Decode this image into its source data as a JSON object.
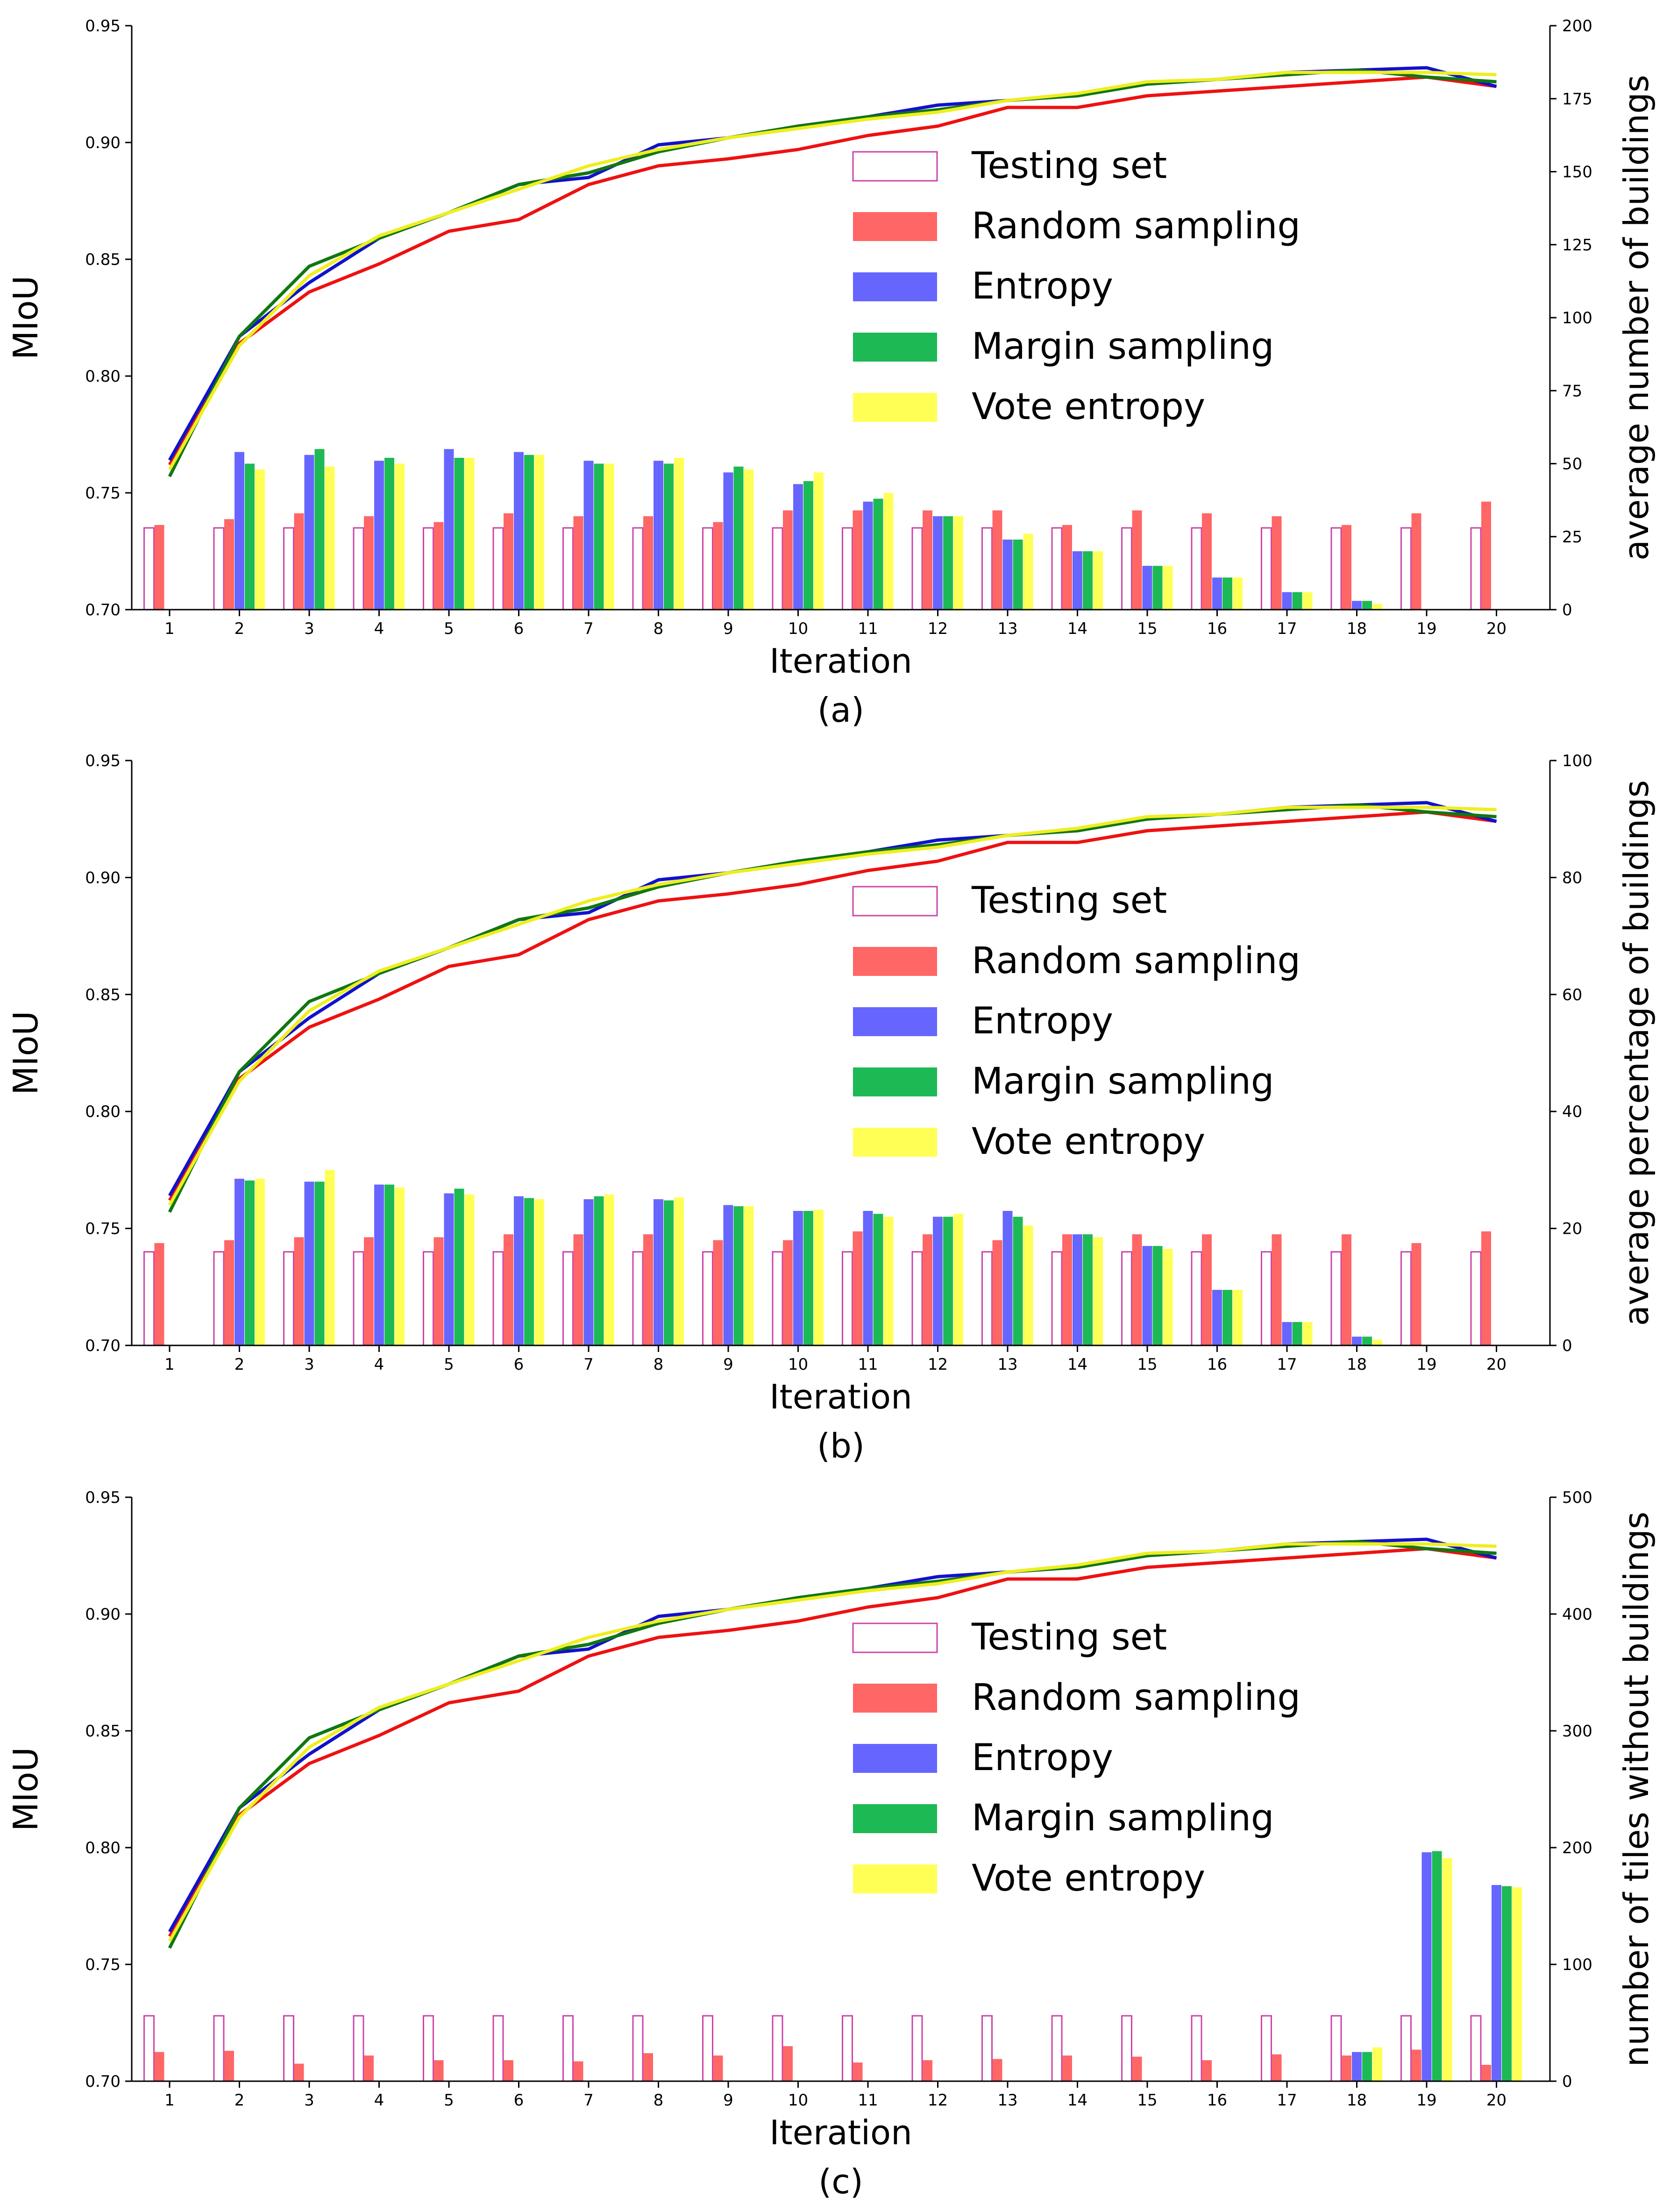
{
  "colors": {
    "testing": "#cc44aa",
    "random": "#ff6666",
    "entropy": "#6666ff",
    "margin": "#1db954",
    "vote": "#ffff55",
    "line_random": "#ee1111",
    "line_entropy": "#1111cc",
    "line_margin": "#117711",
    "line_vote": "#eeee22"
  },
  "chart_data": [
    {
      "type": "bar+line",
      "panel_label": "(a)",
      "xlabel": "Iteration",
      "ylabel": "MIoU",
      "ylabel_right": "average number of buildings",
      "categories": [
        "1",
        "2",
        "3",
        "4",
        "5",
        "6",
        "7",
        "8",
        "9",
        "10",
        "11",
        "12",
        "13",
        "14",
        "15",
        "16",
        "17",
        "18",
        "19",
        "20"
      ],
      "ylim": [
        0.7,
        0.95
      ],
      "yticks": [
        "0.70",
        "0.75",
        "0.80",
        "0.85",
        "0.90",
        "0.95"
      ],
      "ylim_right": [
        0,
        200
      ],
      "yticks_right": [
        "0",
        "25",
        "50",
        "75",
        "100",
        "125",
        "150",
        "175",
        "200"
      ],
      "legend": [
        "Testing set",
        "Random sampling",
        "Entropy",
        "Margin sampling",
        "Vote entropy"
      ],
      "lines": [
        {
          "name": "Random sampling",
          "key": "line_random",
          "values": [
            0.762,
            0.814,
            0.836,
            0.848,
            0.862,
            0.867,
            0.882,
            0.89,
            0.893,
            0.897,
            0.903,
            0.907,
            0.915,
            0.915,
            0.92,
            0.922,
            0.924,
            0.926,
            0.928,
            0.924
          ]
        },
        {
          "name": "Entropy",
          "key": "line_entropy",
          "values": [
            0.764,
            0.817,
            0.84,
            0.859,
            0.87,
            0.882,
            0.885,
            0.899,
            0.902,
            0.907,
            0.911,
            0.916,
            0.918,
            0.92,
            0.925,
            0.927,
            0.93,
            0.931,
            0.932,
            0.924
          ]
        },
        {
          "name": "Margin sampling",
          "key": "line_margin",
          "values": [
            0.757,
            0.817,
            0.847,
            0.859,
            0.87,
            0.882,
            0.887,
            0.896,
            0.902,
            0.907,
            0.911,
            0.914,
            0.918,
            0.92,
            0.925,
            0.927,
            0.929,
            0.931,
            0.928,
            0.926
          ]
        },
        {
          "name": "Vote entropy",
          "key": "line_vote",
          "values": [
            0.76,
            0.813,
            0.843,
            0.86,
            0.87,
            0.88,
            0.89,
            0.897,
            0.902,
            0.906,
            0.91,
            0.913,
            0.918,
            0.921,
            0.926,
            0.927,
            0.93,
            0.93,
            0.93,
            0.929
          ]
        }
      ],
      "bars": [
        {
          "name": "Testing set",
          "key": "testing",
          "values": [
            28,
            28,
            28,
            28,
            28,
            28,
            28,
            28,
            28,
            28,
            28,
            28,
            28,
            28,
            28,
            28,
            28,
            28,
            28,
            28
          ]
        },
        {
          "name": "Random sampling",
          "key": "random",
          "values": [
            29,
            31,
            33,
            32,
            30,
            33,
            32,
            32,
            30,
            34,
            34,
            34,
            34,
            29,
            34,
            33,
            32,
            29,
            33,
            37
          ]
        },
        {
          "name": "Entropy",
          "key": "entropy",
          "values": [
            null,
            54,
            53,
            51,
            55,
            54,
            51,
            51,
            47,
            43,
            37,
            32,
            24,
            20,
            15,
            11,
            6,
            3,
            null,
            null
          ]
        },
        {
          "name": "Margin sampling",
          "key": "margin",
          "values": [
            null,
            50,
            55,
            52,
            52,
            53,
            50,
            50,
            49,
            44,
            38,
            32,
            24,
            20,
            15,
            11,
            6,
            3,
            null,
            null
          ]
        },
        {
          "name": "Vote entropy",
          "key": "vote",
          "values": [
            null,
            48,
            49,
            50,
            52,
            53,
            50,
            52,
            48,
            47,
            40,
            32,
            26,
            20,
            15,
            11,
            6,
            2,
            null,
            null
          ]
        }
      ]
    },
    {
      "type": "bar+line",
      "panel_label": "(b)",
      "xlabel": "Iteration",
      "ylabel": "MIoU",
      "ylabel_right": "average percentage of buildings",
      "categories": [
        "1",
        "2",
        "3",
        "4",
        "5",
        "6",
        "7",
        "8",
        "9",
        "10",
        "11",
        "12",
        "13",
        "14",
        "15",
        "16",
        "17",
        "18",
        "19",
        "20"
      ],
      "ylim": [
        0.7,
        0.95
      ],
      "yticks": [
        "0.70",
        "0.75",
        "0.80",
        "0.85",
        "0.90",
        "0.95"
      ],
      "ylim_right": [
        0,
        100
      ],
      "yticks_right": [
        "0",
        "20",
        "40",
        "60",
        "80",
        "100"
      ],
      "legend": [
        "Testing set",
        "Random sampling",
        "Entropy",
        "Margin sampling",
        "Vote entropy"
      ],
      "lines": [
        {
          "name": "Random sampling",
          "key": "line_random",
          "values": [
            0.762,
            0.814,
            0.836,
            0.848,
            0.862,
            0.867,
            0.882,
            0.89,
            0.893,
            0.897,
            0.903,
            0.907,
            0.915,
            0.915,
            0.92,
            0.922,
            0.924,
            0.926,
            0.928,
            0.924
          ]
        },
        {
          "name": "Entropy",
          "key": "line_entropy",
          "values": [
            0.764,
            0.817,
            0.84,
            0.859,
            0.87,
            0.882,
            0.885,
            0.899,
            0.902,
            0.907,
            0.911,
            0.916,
            0.918,
            0.92,
            0.925,
            0.927,
            0.93,
            0.931,
            0.932,
            0.924
          ]
        },
        {
          "name": "Margin sampling",
          "key": "line_margin",
          "values": [
            0.757,
            0.817,
            0.847,
            0.859,
            0.87,
            0.882,
            0.887,
            0.896,
            0.902,
            0.907,
            0.911,
            0.914,
            0.918,
            0.92,
            0.925,
            0.927,
            0.929,
            0.931,
            0.928,
            0.926
          ]
        },
        {
          "name": "Vote entropy",
          "key": "line_vote",
          "values": [
            0.76,
            0.813,
            0.843,
            0.86,
            0.87,
            0.88,
            0.89,
            0.897,
            0.902,
            0.906,
            0.91,
            0.913,
            0.918,
            0.921,
            0.926,
            0.927,
            0.93,
            0.93,
            0.93,
            0.929
          ]
        }
      ],
      "bars": [
        {
          "name": "Testing set",
          "key": "testing",
          "values": [
            16,
            16,
            16,
            16,
            16,
            16,
            16,
            16,
            16,
            16,
            16,
            16,
            16,
            16,
            16,
            16,
            16,
            16,
            16,
            16
          ]
        },
        {
          "name": "Random sampling",
          "key": "random",
          "values": [
            17.5,
            18,
            18.5,
            18.5,
            18.5,
            19,
            19,
            19,
            18,
            18,
            19.5,
            19,
            18,
            19,
            19,
            19,
            19,
            19,
            17.5,
            19.5
          ]
        },
        {
          "name": "Entropy",
          "key": "entropy",
          "values": [
            null,
            28.5,
            28,
            27.5,
            26,
            25.5,
            25,
            25,
            24,
            23,
            23,
            22,
            23,
            19,
            17,
            9.5,
            4,
            1.5,
            null,
            null
          ]
        },
        {
          "name": "Margin sampling",
          "key": "margin",
          "values": [
            null,
            28.2,
            28,
            27.5,
            26.8,
            25.2,
            25.5,
            24.8,
            23.8,
            23,
            22.5,
            22,
            22,
            19,
            17,
            9.5,
            4,
            1.5,
            null,
            null
          ]
        },
        {
          "name": "Vote entropy",
          "key": "vote",
          "values": [
            null,
            28.5,
            30,
            27,
            25.8,
            25,
            25.8,
            25.3,
            23.8,
            23.2,
            22,
            22.5,
            20.5,
            18.5,
            16.5,
            9.5,
            4,
            1,
            null,
            null
          ]
        }
      ]
    },
    {
      "type": "bar+line",
      "panel_label": "(c)",
      "xlabel": "Iteration",
      "ylabel": "MIoU",
      "ylabel_right": "number of tiles without buildings",
      "categories": [
        "1",
        "2",
        "3",
        "4",
        "5",
        "6",
        "7",
        "8",
        "9",
        "10",
        "11",
        "12",
        "13",
        "14",
        "15",
        "16",
        "17",
        "18",
        "19",
        "20"
      ],
      "ylim": [
        0.7,
        0.95
      ],
      "yticks": [
        "0.70",
        "0.75",
        "0.80",
        "0.85",
        "0.90",
        "0.95"
      ],
      "ylim_right": [
        0,
        500
      ],
      "yticks_right": [
        "0",
        "100",
        "200",
        "300",
        "400",
        "500"
      ],
      "legend": [
        "Testing set",
        "Random sampling",
        "Entropy",
        "Margin sampling",
        "Vote entropy"
      ],
      "lines": [
        {
          "name": "Random sampling",
          "key": "line_random",
          "values": [
            0.762,
            0.814,
            0.836,
            0.848,
            0.862,
            0.867,
            0.882,
            0.89,
            0.893,
            0.897,
            0.903,
            0.907,
            0.915,
            0.915,
            0.92,
            0.922,
            0.924,
            0.926,
            0.928,
            0.924
          ]
        },
        {
          "name": "Entropy",
          "key": "line_entropy",
          "values": [
            0.764,
            0.817,
            0.84,
            0.859,
            0.87,
            0.882,
            0.885,
            0.899,
            0.902,
            0.907,
            0.911,
            0.916,
            0.918,
            0.92,
            0.925,
            0.927,
            0.93,
            0.931,
            0.932,
            0.924
          ]
        },
        {
          "name": "Margin sampling",
          "key": "line_margin",
          "values": [
            0.757,
            0.817,
            0.847,
            0.859,
            0.87,
            0.882,
            0.887,
            0.896,
            0.902,
            0.907,
            0.911,
            0.914,
            0.918,
            0.92,
            0.925,
            0.927,
            0.929,
            0.931,
            0.928,
            0.926
          ]
        },
        {
          "name": "Vote entropy",
          "key": "line_vote",
          "values": [
            0.76,
            0.813,
            0.843,
            0.86,
            0.87,
            0.88,
            0.89,
            0.897,
            0.902,
            0.906,
            0.91,
            0.913,
            0.918,
            0.921,
            0.926,
            0.927,
            0.93,
            0.93,
            0.93,
            0.929
          ]
        }
      ],
      "bars": [
        {
          "name": "Testing set",
          "key": "testing",
          "values": [
            56,
            56,
            56,
            56,
            56,
            56,
            56,
            56,
            56,
            56,
            56,
            56,
            56,
            56,
            56,
            56,
            56,
            56,
            56,
            56
          ]
        },
        {
          "name": "Random sampling",
          "key": "random",
          "values": [
            25,
            26,
            15,
            22,
            18,
            18,
            17,
            24,
            22,
            30,
            16,
            18,
            19,
            22,
            21,
            18,
            23,
            22,
            27,
            14
          ]
        },
        {
          "name": "Entropy",
          "key": "entropy",
          "values": [
            null,
            null,
            null,
            null,
            null,
            null,
            null,
            null,
            null,
            null,
            null,
            null,
            null,
            null,
            null,
            null,
            null,
            25,
            196,
            168
          ]
        },
        {
          "name": "Margin sampling",
          "key": "margin",
          "values": [
            null,
            null,
            null,
            null,
            null,
            null,
            null,
            null,
            null,
            null,
            null,
            null,
            null,
            null,
            null,
            null,
            null,
            25,
            197,
            167
          ]
        },
        {
          "name": "Vote entropy",
          "key": "vote",
          "values": [
            null,
            null,
            null,
            null,
            null,
            null,
            null,
            null,
            null,
            null,
            null,
            null,
            null,
            null,
            null,
            null,
            null,
            29,
            191,
            166
          ]
        }
      ]
    }
  ]
}
